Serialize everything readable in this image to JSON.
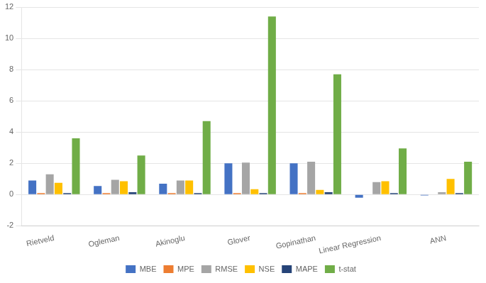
{
  "chart_data": {
    "type": "bar",
    "categories": [
      "Rietveld",
      "Ogleman",
      "Akinoglu",
      "Glover",
      "Gopinathan",
      "Linear Regression",
      "ANN"
    ],
    "series": [
      {
        "name": "MBE",
        "color": "#4472C4",
        "values": [
          0.9,
          0.55,
          0.7,
          2.0,
          2.0,
          -0.2,
          -0.05
        ]
      },
      {
        "name": "MPE",
        "color": "#ED7D31",
        "values": [
          0.1,
          0.1,
          0.1,
          0.1,
          0.1,
          0.0,
          0.0
        ]
      },
      {
        "name": "RMSE",
        "color": "#A5A5A5",
        "values": [
          1.3,
          0.95,
          0.9,
          2.05,
          2.1,
          0.8,
          0.15
        ]
      },
      {
        "name": "NSE",
        "color": "#FFC000",
        "values": [
          0.75,
          0.85,
          0.9,
          0.35,
          0.3,
          0.85,
          1.0
        ]
      },
      {
        "name": "MAPE",
        "color": "#264478",
        "values": [
          0.1,
          0.15,
          0.1,
          0.1,
          0.15,
          0.1,
          0.1
        ]
      },
      {
        "name": "t-stat",
        "color": "#70AD47",
        "values": [
          3.6,
          2.5,
          4.7,
          11.4,
          7.7,
          2.95,
          2.1
        ]
      }
    ],
    "ylim": [
      -2,
      12
    ],
    "yticks": [
      -2,
      0,
      2,
      4,
      6,
      8,
      10,
      12
    ],
    "grid": true,
    "legend": "bottom"
  }
}
